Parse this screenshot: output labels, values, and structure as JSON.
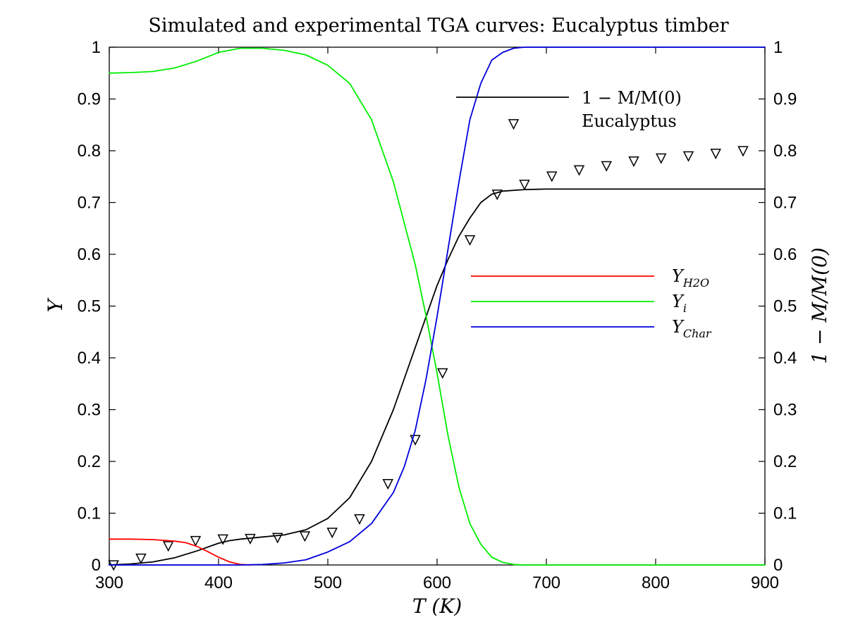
{
  "chart_data": {
    "type": "line",
    "title": "Simulated and experimental TGA curves: Eucalyptus timber",
    "xlabel": "T (K)",
    "ylabel_left": "Y",
    "ylabel_right": "1 − M/M(0)",
    "xlim": [
      300,
      900
    ],
    "ylim": [
      0,
      1
    ],
    "x_ticks": [
      "300",
      "400",
      "500",
      "600",
      "700",
      "800",
      "900"
    ],
    "y_ticks": [
      "0",
      "0.1",
      "0.2",
      "0.3",
      "0.4",
      "0.5",
      "0.6",
      "0.7",
      "0.8",
      "0.9",
      "1"
    ],
    "grid": false,
    "series": [
      {
        "name": "1 − M/M(0)",
        "axis": "right",
        "style": "line",
        "color": "#000000",
        "x": [
          300,
          320,
          340,
          360,
          380,
          400,
          410,
          420,
          440,
          460,
          480,
          500,
          520,
          540,
          560,
          580,
          590,
          600,
          610,
          620,
          630,
          640,
          650,
          660,
          680,
          700,
          900
        ],
        "y": [
          0.0,
          0.002,
          0.006,
          0.014,
          0.027,
          0.042,
          0.047,
          0.05,
          0.054,
          0.058,
          0.068,
          0.09,
          0.13,
          0.2,
          0.3,
          0.42,
          0.48,
          0.54,
          0.59,
          0.635,
          0.67,
          0.7,
          0.716,
          0.722,
          0.725,
          0.726,
          0.726
        ]
      },
      {
        "name": "Eucalyptus",
        "axis": "right",
        "style": "markers",
        "marker": "triangle-down",
        "color": "#000000",
        "x": [
          304,
          329,
          354,
          379,
          404,
          429,
          454,
          479,
          504,
          529,
          555,
          580,
          605,
          630,
          655,
          670,
          680,
          705,
          730,
          755,
          780,
          805,
          830,
          855,
          880
        ],
        "y": [
          0.0,
          0.013,
          0.037,
          0.047,
          0.05,
          0.051,
          0.053,
          0.056,
          0.063,
          0.089,
          0.157,
          0.242,
          0.371,
          0.628,
          0.716,
          0.852,
          0.735,
          0.751,
          0.763,
          0.771,
          0.78,
          0.786,
          0.79,
          0.795,
          0.8
        ]
      },
      {
        "name": "Y_H2O",
        "axis": "left",
        "style": "line",
        "color": "#ff0000",
        "x": [
          300,
          320,
          340,
          360,
          370,
          380,
          390,
          400,
          410,
          420,
          430
        ],
        "y": [
          0.05,
          0.05,
          0.049,
          0.046,
          0.043,
          0.036,
          0.026,
          0.015,
          0.006,
          0.001,
          0.0
        ]
      },
      {
        "name": "Y_i",
        "axis": "left",
        "style": "line",
        "color": "#00ee00",
        "x": [
          300,
          320,
          340,
          360,
          380,
          400,
          420,
          440,
          460,
          480,
          500,
          520,
          540,
          560,
          580,
          590,
          600,
          610,
          620,
          630,
          640,
          650,
          660,
          670,
          680,
          900
        ],
        "y": [
          0.95,
          0.951,
          0.953,
          0.96,
          0.973,
          0.99,
          0.998,
          0.998,
          0.994,
          0.985,
          0.965,
          0.93,
          0.86,
          0.74,
          0.58,
          0.48,
          0.37,
          0.25,
          0.15,
          0.08,
          0.04,
          0.015,
          0.005,
          0.001,
          0.0,
          0.0
        ]
      },
      {
        "name": "Y_Char",
        "axis": "left",
        "style": "line",
        "color": "#0000dd",
        "x": [
          300,
          420,
          440,
          460,
          480,
          500,
          520,
          540,
          560,
          570,
          580,
          590,
          600,
          610,
          620,
          630,
          640,
          650,
          660,
          670,
          680,
          900
        ],
        "y": [
          0.0,
          0.0,
          0.001,
          0.004,
          0.01,
          0.025,
          0.045,
          0.08,
          0.14,
          0.19,
          0.26,
          0.36,
          0.48,
          0.61,
          0.74,
          0.86,
          0.93,
          0.975,
          0.99,
          0.998,
          1.0,
          1.0
        ]
      }
    ],
    "legends": [
      {
        "placement": "top-right",
        "entries": [
          {
            "text": "1 − M/M(0)",
            "color": "#000000",
            "kind": "line"
          },
          {
            "text": "Eucalyptus",
            "kind": "marker-none"
          }
        ]
      },
      {
        "placement": "middle-right",
        "entries": [
          {
            "base": "Y",
            "sub": "H2O",
            "color": "#ff0000",
            "kind": "line"
          },
          {
            "base": "Y",
            "sub": "i",
            "color": "#00ee00",
            "kind": "line"
          },
          {
            "base": "Y",
            "sub": "Char",
            "color": "#0000dd",
            "kind": "line"
          }
        ]
      }
    ]
  }
}
